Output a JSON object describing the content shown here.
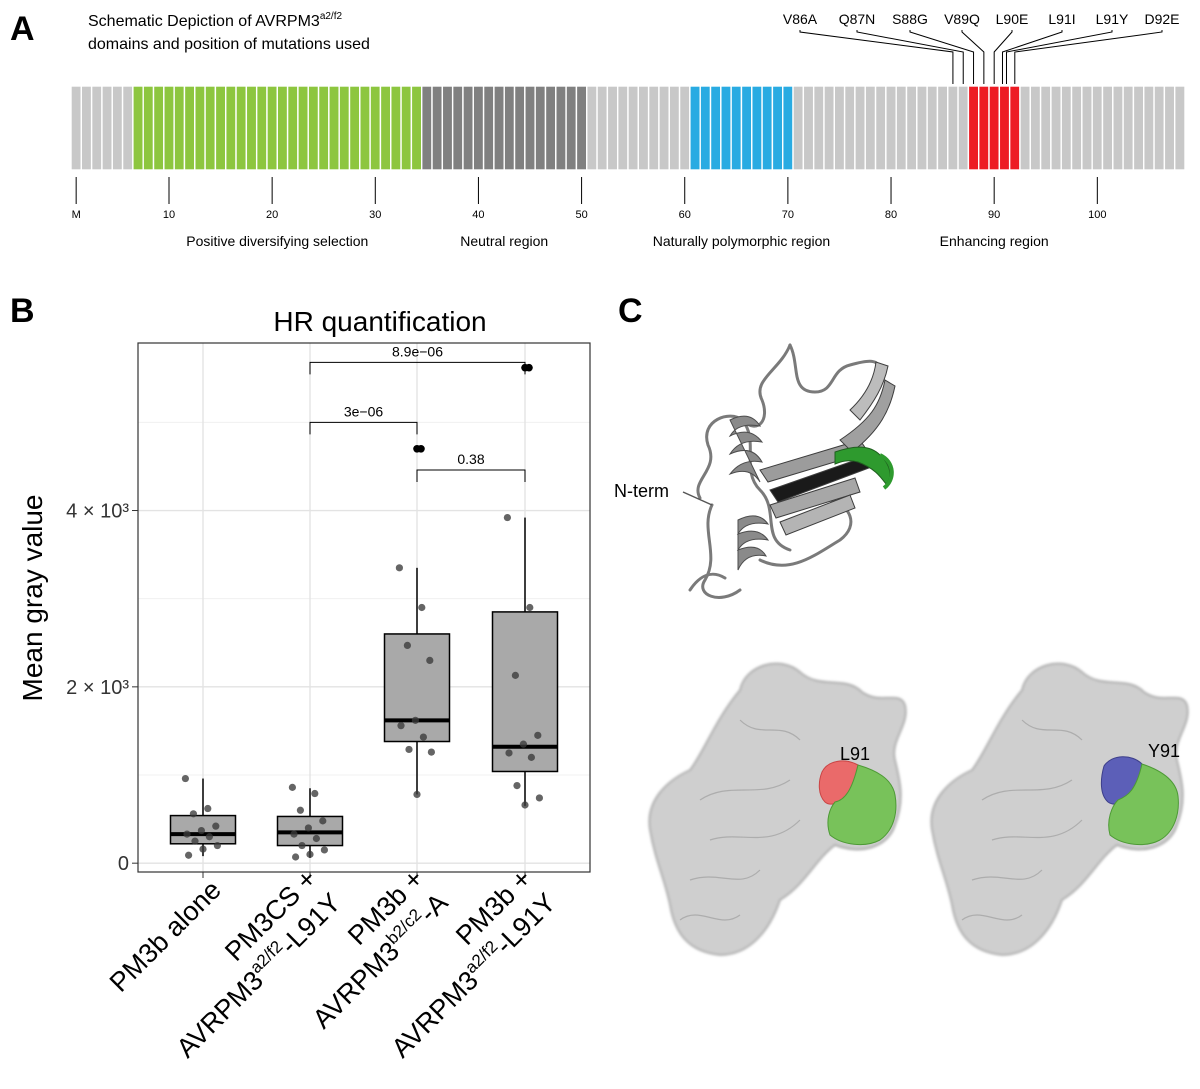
{
  "panel_a": {
    "letter": "A",
    "title_line1": "Schematic Depiction of AVRPM3",
    "title_sup": "a2/f2",
    "title_line2": "domains and position of mutations used",
    "mutations": [
      "V86A",
      "Q87N",
      "S88G",
      "V89Q",
      "L90E",
      "L91I",
      "L91Y",
      "D92E"
    ],
    "axis_ticks": [
      {
        "label": "M",
        "pos": 1
      },
      {
        "label": "10",
        "pos": 10
      },
      {
        "label": "20",
        "pos": 20
      },
      {
        "label": "30",
        "pos": 30
      },
      {
        "label": "40",
        "pos": 40
      },
      {
        "label": "50",
        "pos": 50
      },
      {
        "label": "60",
        "pos": 60
      },
      {
        "label": "70",
        "pos": 70
      },
      {
        "label": "80",
        "pos": 80
      },
      {
        "label": "90",
        "pos": 90
      },
      {
        "label": "100",
        "pos": 100
      }
    ],
    "regions": [
      {
        "label": "Positive diversifying selection",
        "from": 7,
        "to": 34,
        "color": "#8dc63f"
      },
      {
        "label": "Neutral region",
        "from": 35,
        "to": 50,
        "color": "#808080"
      },
      {
        "label": "Naturally polymorphic region",
        "from": 61,
        "to": 70,
        "color": "#29abe2"
      },
      {
        "label": "Enhancing region",
        "from": 88,
        "to": 92,
        "color": "#ed1c24"
      }
    ],
    "default_color": "#c8c8c8",
    "total_residues": 108
  },
  "panel_b": {
    "letter": "B",
    "chart_data": {
      "type": "box",
      "title": "HR quantification",
      "ylabel": "Mean gray value",
      "ylim": [
        -100,
        5900
      ],
      "yticks": [
        {
          "value": 0,
          "label": "0"
        },
        {
          "value": 2000,
          "label": "2 × 10³"
        },
        {
          "value": 4000,
          "label": "4 × 10³"
        }
      ],
      "categories": [
        {
          "line1": "PM3b alone",
          "line2": "",
          "sup": "",
          "tail": ""
        },
        {
          "line1": "PM3CS +",
          "line2": "AVRPM3",
          "sup": "a2/f2",
          "tail": "-L91Y"
        },
        {
          "line1": "PM3b +",
          "line2": "AVRPM3",
          "sup": "b2/c2",
          "tail": "-A"
        },
        {
          "line1": "PM3b +",
          "line2": "AVRPM3",
          "sup": "a2/f2",
          "tail": "-L91Y"
        }
      ],
      "boxes": [
        {
          "q1": 220,
          "median": 330,
          "q3": 540,
          "whisker_low": 80,
          "whisker_high": 960
        },
        {
          "q1": 200,
          "median": 350,
          "q3": 530,
          "whisker_low": 60,
          "whisker_high": 850
        },
        {
          "q1": 1380,
          "median": 1620,
          "q3": 2600,
          "whisker_low": 780,
          "whisker_high": 3350
        },
        {
          "q1": 1040,
          "median": 1320,
          "q3": 2850,
          "whisker_low": 650,
          "whisker_high": 3920
        }
      ],
      "outliers": [
        {
          "group": 2,
          "values": [
            4700,
            4700
          ]
        },
        {
          "group": 3,
          "values": [
            5620,
            5620
          ]
        }
      ],
      "points": [
        [
          960,
          620,
          560,
          420,
          370,
          330,
          300,
          250,
          200,
          160,
          90
        ],
        [
          860,
          790,
          600,
          480,
          400,
          330,
          280,
          200,
          150,
          100,
          70
        ],
        [
          3350,
          2900,
          2470,
          2300,
          1620,
          1560,
          1430,
          1290,
          1260,
          780
        ],
        [
          3920,
          2900,
          2130,
          1450,
          1350,
          1250,
          1200,
          880,
          740,
          660
        ]
      ],
      "comparisons": [
        {
          "from": 1,
          "to": 3,
          "label": "8.9e−06",
          "y": 5680
        },
        {
          "from": 1,
          "to": 2,
          "label": "3e−06",
          "y": 5000
        },
        {
          "from": 2,
          "to": 3,
          "label": "0.38",
          "y": 4460
        }
      ]
    }
  },
  "panel_c": {
    "letter": "C",
    "nterm_label": "N-term",
    "left_residue_label": "L91",
    "right_residue_label": "Y91"
  }
}
